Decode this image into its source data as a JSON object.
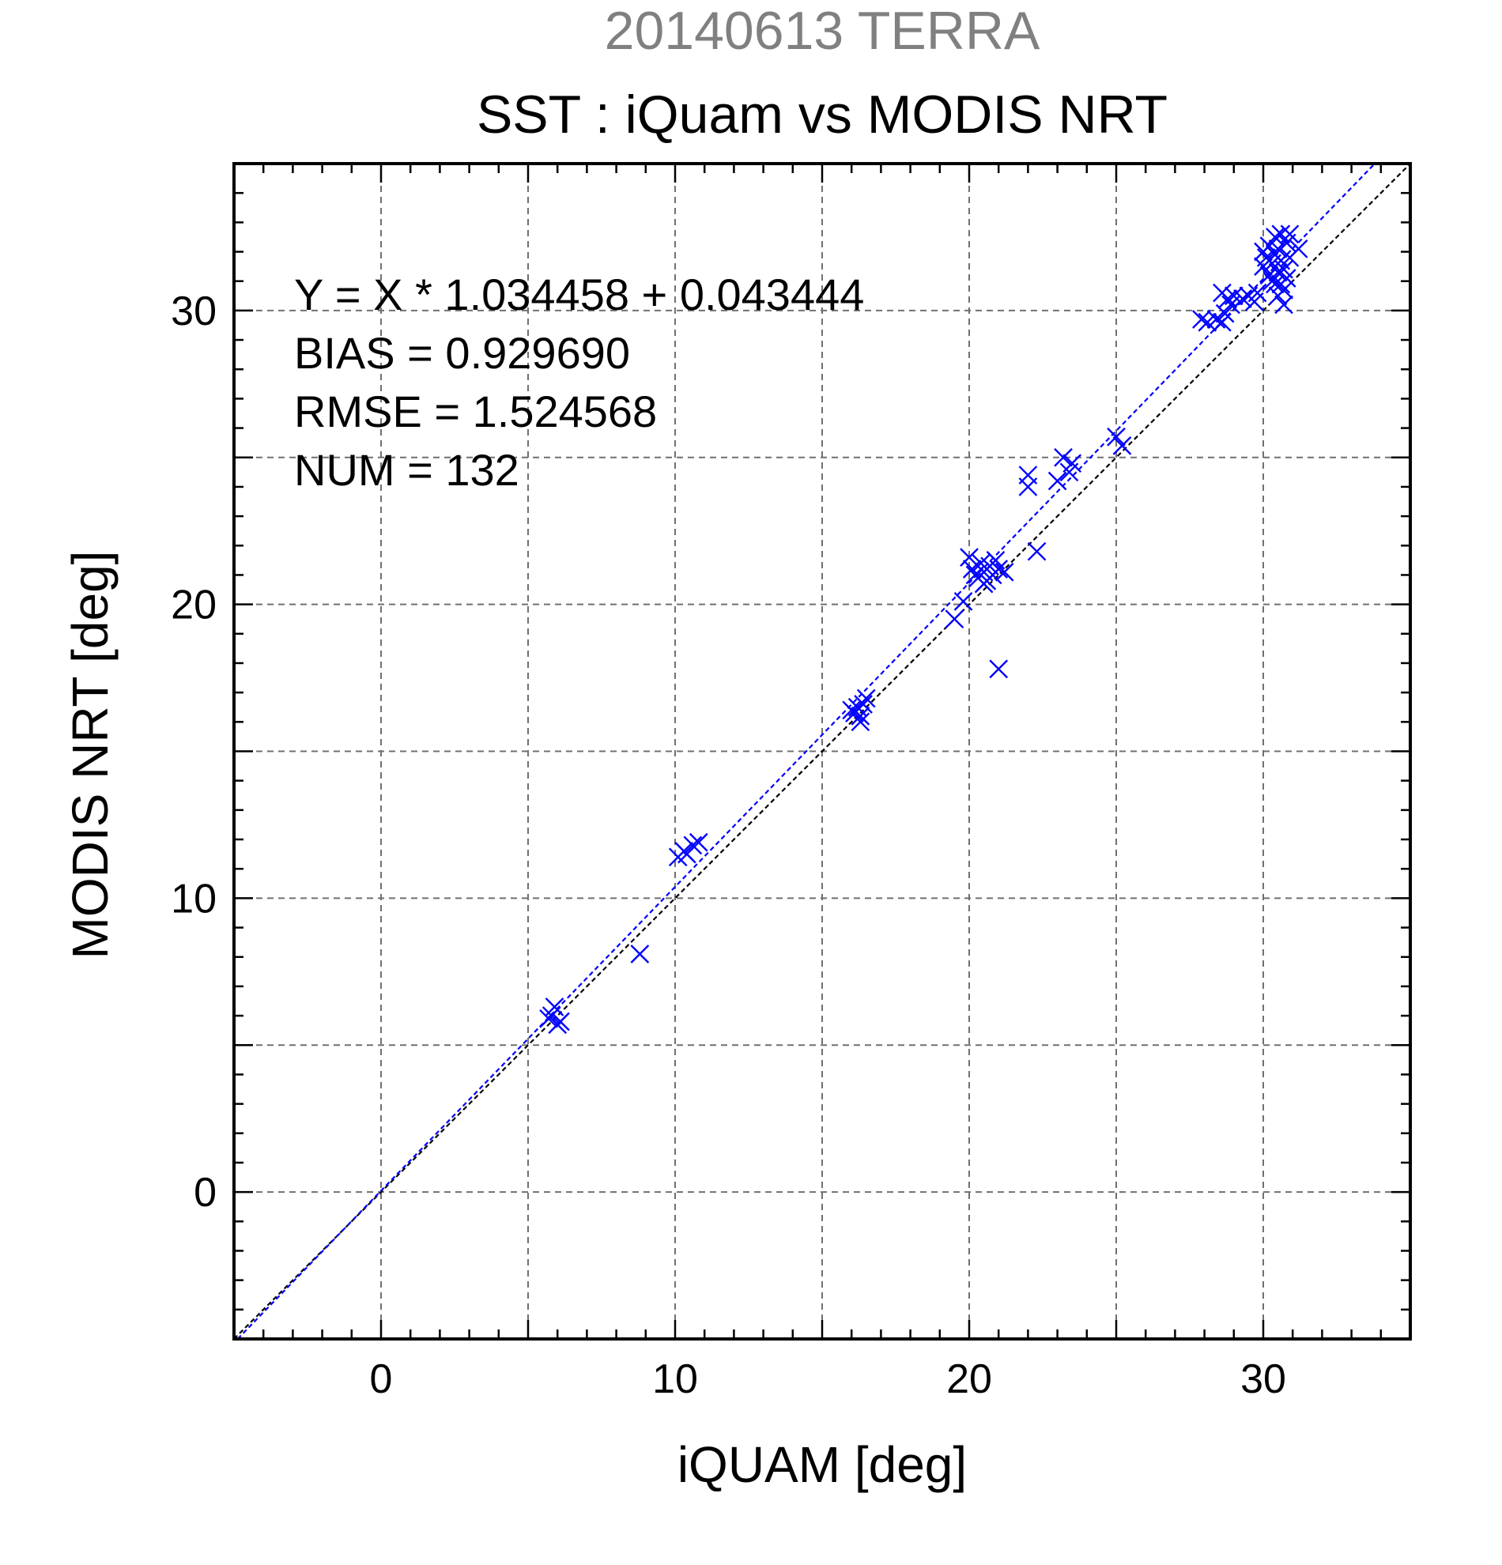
{
  "chart_data": {
    "type": "scatter",
    "title_date": "20140613 TERRA",
    "title": "SST : iQuam vs MODIS NRT",
    "xlabel": "iQUAM [deg]",
    "ylabel": "MODIS NRT [deg]",
    "xlim": [
      -5,
      35
    ],
    "ylim": [
      -5,
      35
    ],
    "xticks": [
      0,
      10,
      20,
      30
    ],
    "yticks": [
      0,
      10,
      20,
      30
    ],
    "xtick_labels": [
      "0",
      "10",
      "20",
      "30"
    ],
    "ytick_labels": [
      "0",
      "10",
      "20",
      "30"
    ],
    "grid_step": 5,
    "minor_step": 1,
    "grid": true,
    "marker": "x",
    "marker_color": "#0000ff",
    "fit_line": {
      "slope": 1.034458,
      "intercept": 0.043444,
      "color": "#0000ff",
      "style": "dashed"
    },
    "identity_line": {
      "slope": 1,
      "intercept": 0,
      "color": "#000000",
      "style": "dashed"
    },
    "stats": [
      "Y = X * 1.034458 + 0.043444",
      "BIAS = 0.929690",
      "RMSE = 1.524568",
      "NUM = 132"
    ],
    "points": [
      [
        5.7,
        5.9
      ],
      [
        5.9,
        6.3
      ],
      [
        6.0,
        5.7
      ],
      [
        5.8,
        6.0
      ],
      [
        6.1,
        5.8
      ],
      [
        8.8,
        8.1
      ],
      [
        10.1,
        11.4
      ],
      [
        10.3,
        11.6
      ],
      [
        10.6,
        11.8
      ],
      [
        10.8,
        11.9
      ],
      [
        10.4,
        11.5
      ],
      [
        16.0,
        16.4
      ],
      [
        16.2,
        16.5
      ],
      [
        16.3,
        16.2
      ],
      [
        16.4,
        16.6
      ],
      [
        16.5,
        16.8
      ],
      [
        16.1,
        16.3
      ],
      [
        16.3,
        16.0
      ],
      [
        19.5,
        19.5
      ],
      [
        19.8,
        20.1
      ],
      [
        20.0,
        21.6
      ],
      [
        20.1,
        21.2
      ],
      [
        20.2,
        21.0
      ],
      [
        20.3,
        20.9
      ],
      [
        20.4,
        21.4
      ],
      [
        20.5,
        21.1
      ],
      [
        20.6,
        20.8
      ],
      [
        20.7,
        21.3
      ],
      [
        20.8,
        21.0
      ],
      [
        20.9,
        21.5
      ],
      [
        21.0,
        21.2
      ],
      [
        20.5,
        20.7
      ],
      [
        21.0,
        17.8
      ],
      [
        21.2,
        21.1
      ],
      [
        22.0,
        24.4
      ],
      [
        22.0,
        24.0
      ],
      [
        22.3,
        21.8
      ],
      [
        23.0,
        24.2
      ],
      [
        23.2,
        25.0
      ],
      [
        23.4,
        24.5
      ],
      [
        23.5,
        24.8
      ],
      [
        25.0,
        25.7
      ],
      [
        25.2,
        25.4
      ],
      [
        27.9,
        29.7
      ],
      [
        28.1,
        29.6
      ],
      [
        28.4,
        29.7
      ],
      [
        28.6,
        29.6
      ],
      [
        28.7,
        29.9
      ],
      [
        28.6,
        30.6
      ],
      [
        28.8,
        30.4
      ],
      [
        29.0,
        30.5
      ],
      [
        28.9,
        30.2
      ],
      [
        29.3,
        30.4
      ],
      [
        29.5,
        30.5
      ],
      [
        29.8,
        30.6
      ],
      [
        29.7,
        30.3
      ],
      [
        30.0,
        31.5
      ],
      [
        30.0,
        32.0
      ],
      [
        30.1,
        31.8
      ],
      [
        30.2,
        32.2
      ],
      [
        30.2,
        31.2
      ],
      [
        30.3,
        31.0
      ],
      [
        30.3,
        31.6
      ],
      [
        30.4,
        32.5
      ],
      [
        30.4,
        31.9
      ],
      [
        30.5,
        31.3
      ],
      [
        30.5,
        32.1
      ],
      [
        30.6,
        30.9
      ],
      [
        30.6,
        31.7
      ],
      [
        30.6,
        32.6
      ],
      [
        30.7,
        31.4
      ],
      [
        30.7,
        30.7
      ],
      [
        30.8,
        32.3
      ],
      [
        30.8,
        31.1
      ],
      [
        30.9,
        32.6
      ],
      [
        30.9,
        31.8
      ],
      [
        30.4,
        30.9
      ],
      [
        30.5,
        30.5
      ],
      [
        30.7,
        30.2
      ],
      [
        31.2,
        32.1
      ]
    ]
  }
}
